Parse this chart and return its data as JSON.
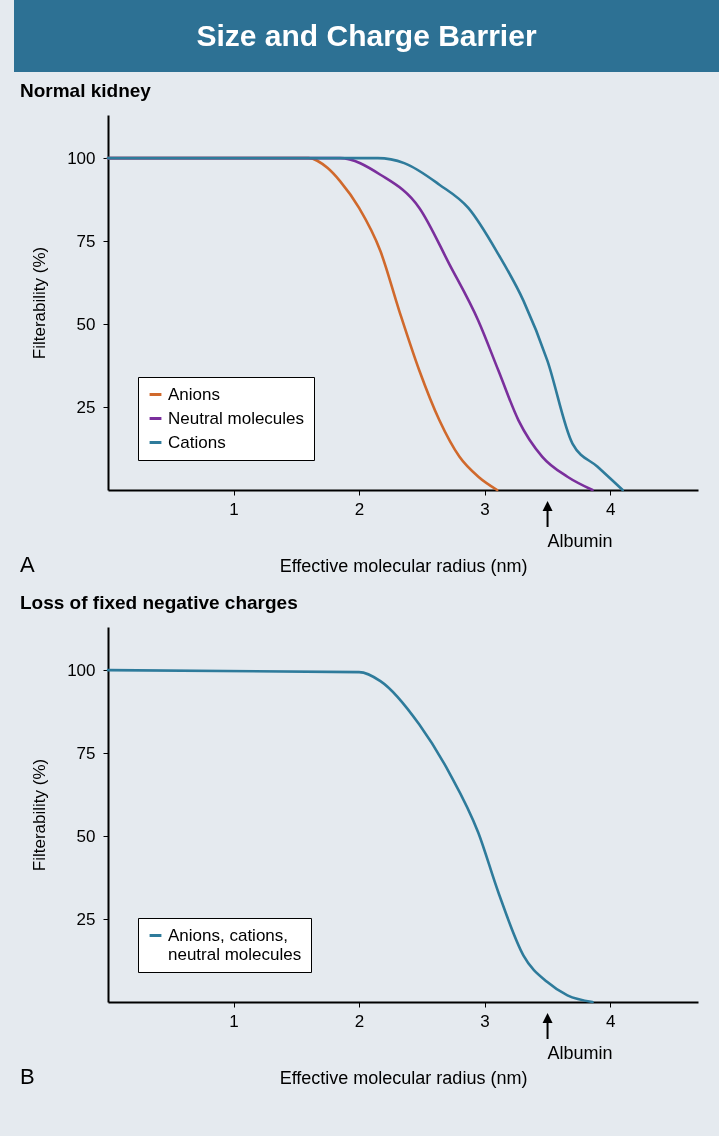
{
  "chart_data": [
    {
      "type": "line",
      "title": "Size and Charge Barrier",
      "subtitle": "Normal kidney",
      "xlabel": "Effective molecular radius (nm)",
      "ylabel": "Filterability (%)",
      "xlim": [
        0,
        4.7
      ],
      "ylim": [
        0,
        113
      ],
      "xticks": [
        1,
        2,
        3,
        4
      ],
      "yticks": [
        25,
        50,
        75,
        100
      ],
      "grid": false,
      "legend": "bottom left",
      "series": [
        {
          "name": "Anions",
          "color": "#d0692c",
          "x": [
            0,
            1.6,
            1.75,
            1.85,
            2.0,
            2.17,
            2.32,
            2.48,
            2.64,
            2.8,
            2.95,
            3.1
          ],
          "values": [
            100,
            100,
            97,
            93,
            85,
            72,
            54,
            36,
            21,
            10,
            4,
            0
          ]
        },
        {
          "name": "Neutral molecules",
          "color": "#7a2f9c",
          "x": [
            0,
            1.85,
            2.17,
            2.48,
            2.72,
            2.95,
            3.11,
            3.27,
            3.46,
            3.66,
            3.86
          ],
          "values": [
            100,
            100,
            95,
            85,
            68,
            51,
            36,
            21,
            10,
            4,
            0
          ]
        },
        {
          "name": "Cations",
          "color": "#2e7b9b",
          "x": [
            0,
            2.15,
            2.36,
            2.64,
            2.87,
            3.11,
            3.31,
            3.5,
            3.7,
            3.9,
            4.1
          ],
          "values": [
            100,
            100,
            98.5,
            92,
            85,
            71,
            57,
            39,
            14,
            7,
            0
          ]
        }
      ],
      "annotations": [
        "A",
        "Albumin"
      ]
    },
    {
      "type": "line",
      "title": "Loss of fixed negative charges",
      "xlabel": "Effective molecular radius (nm)",
      "ylabel": "Filterability (%)",
      "xlim": [
        0,
        4.7
      ],
      "ylim": [
        0,
        113
      ],
      "xticks": [
        1,
        2,
        3,
        4
      ],
      "yticks": [
        25,
        50,
        75,
        100
      ],
      "grid": false,
      "legend": "bottom left",
      "series": [
        {
          "name": "Anions, cations,\nneutral molecules",
          "color": "#2e7b9b",
          "x": [
            0,
            2.0,
            2.17,
            2.48,
            2.72,
            2.95,
            3.11,
            3.31,
            3.5,
            3.66,
            3.86
          ],
          "values": [
            100,
            99.4,
            96.7,
            83.6,
            69,
            51,
            33,
            14,
            6,
            2,
            0
          ]
        }
      ],
      "annotations": [
        "B",
        "Albumin"
      ]
    }
  ]
}
